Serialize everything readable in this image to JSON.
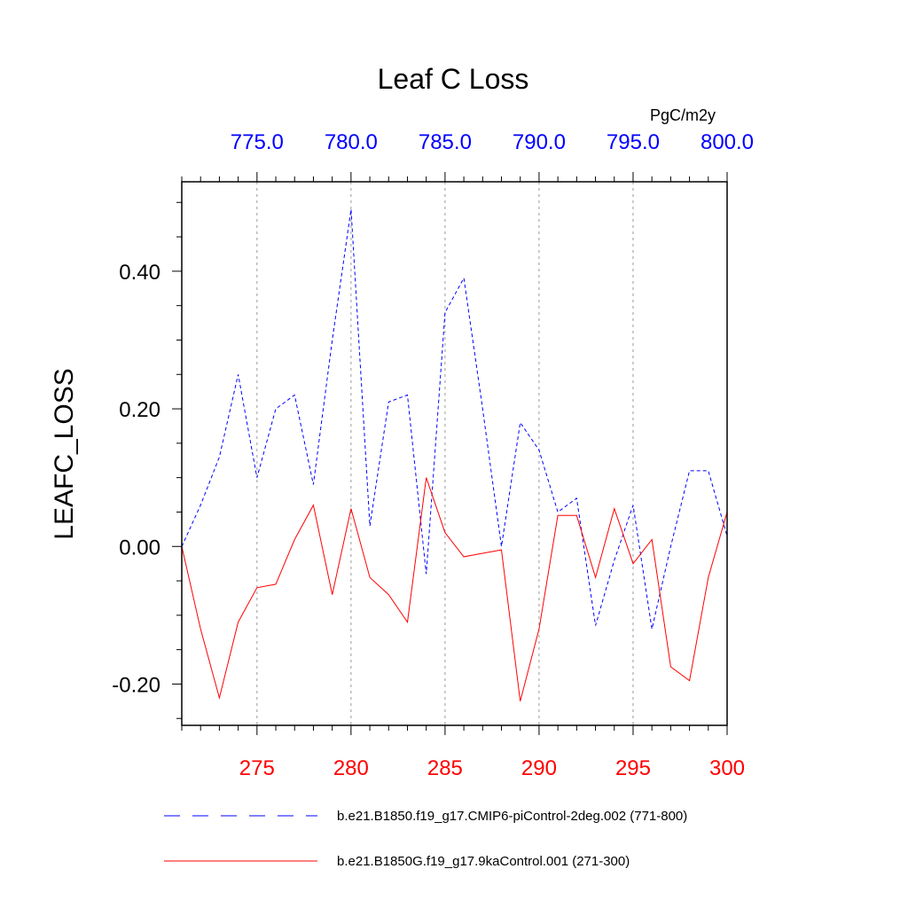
{
  "chart_data": {
    "type": "line",
    "title": "Leaf C Loss",
    "ylabel": "LEAFC_LOSS",
    "units": "PgC/m2y",
    "ylim": [
      -0.26,
      0.53
    ],
    "ytick_labels": [
      "-0.20",
      "0.00",
      "0.20",
      "0.40"
    ],
    "yticks": [
      -0.2,
      0.0,
      0.2,
      0.4
    ],
    "x_top": {
      "range": [
        771,
        800
      ],
      "ticks": [
        775,
        780,
        785,
        790,
        795,
        800
      ],
      "tick_labels": [
        "775.0",
        "780.0",
        "785.0",
        "790.0",
        "795.0",
        "800.0"
      ],
      "color": "#0000ff"
    },
    "x_bottom": {
      "range": [
        271,
        300
      ],
      "ticks": [
        275,
        280,
        285,
        290,
        295,
        300
      ],
      "tick_labels": [
        "275",
        "280",
        "285",
        "290",
        "295",
        "300"
      ],
      "color": "#ff0000"
    },
    "grid": "vertical dashed at major x ticks",
    "series": [
      {
        "name": "b.e21.B1850.f19_g17.CMIP6-piControl-2deg.002 (771-800)",
        "axis": "top",
        "color": "#0000ff",
        "dash": "dashed",
        "x": [
          771,
          772,
          773,
          774,
          775,
          776,
          777,
          778,
          779,
          780,
          781,
          782,
          783,
          784,
          785,
          786,
          787,
          788,
          789,
          790,
          791,
          792,
          793,
          794,
          795,
          796,
          797,
          798,
          799,
          800
        ],
        "values": [
          0.0,
          0.06,
          0.13,
          0.25,
          0.1,
          0.2,
          0.22,
          0.09,
          0.3,
          0.49,
          0.03,
          0.21,
          0.22,
          -0.04,
          0.34,
          0.39,
          0.2,
          0.0,
          0.18,
          0.14,
          0.05,
          0.07,
          -0.115,
          -0.02,
          0.06,
          -0.12,
          0.0,
          0.11,
          0.11,
          0.015
        ]
      },
      {
        "name": "b.e21.B1850G.f19_g17.9kaControl.001 (271-300)",
        "axis": "bottom",
        "color": "#ff0000",
        "dash": "solid",
        "x": [
          271,
          272,
          273,
          274,
          275,
          276,
          277,
          278,
          279,
          280,
          281,
          282,
          283,
          284,
          285,
          286,
          287,
          288,
          289,
          290,
          291,
          292,
          293,
          294,
          295,
          296,
          297,
          298,
          299,
          300
        ],
        "values": [
          0.0,
          -0.12,
          -0.22,
          -0.11,
          -0.06,
          -0.055,
          0.01,
          0.06,
          -0.07,
          0.055,
          -0.045,
          -0.07,
          -0.11,
          0.1,
          0.02,
          -0.015,
          -0.01,
          -0.005,
          -0.225,
          -0.12,
          0.045,
          0.045,
          -0.045,
          0.055,
          -0.025,
          0.01,
          -0.175,
          -0.195,
          -0.045,
          0.05
        ]
      }
    ],
    "legend_position": "bottom"
  }
}
